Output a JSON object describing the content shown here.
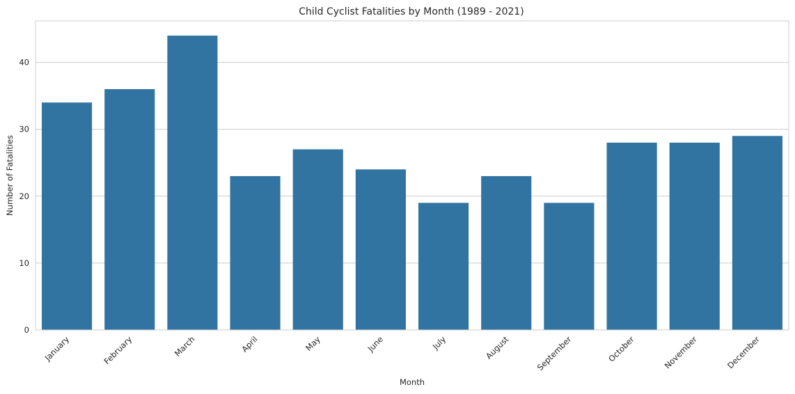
{
  "chart_data": {
    "type": "bar",
    "title": "Child Cyclist Fatalities by Month (1989 - 2021)",
    "xlabel": "Month",
    "ylabel": "Number of Fatalities",
    "categories": [
      "January",
      "February",
      "March",
      "April",
      "May",
      "June",
      "July",
      "August",
      "September",
      "October",
      "November",
      "December"
    ],
    "values": [
      34,
      36,
      44,
      23,
      27,
      24,
      19,
      23,
      19,
      28,
      28,
      29
    ],
    "ylim": [
      0,
      46.2
    ],
    "yticks": [
      0,
      10,
      20,
      30,
      40
    ],
    "grid": true,
    "bar_color": "#3274a1",
    "grid_color": "#cccccc",
    "xtick_rotation_deg": 45
  }
}
